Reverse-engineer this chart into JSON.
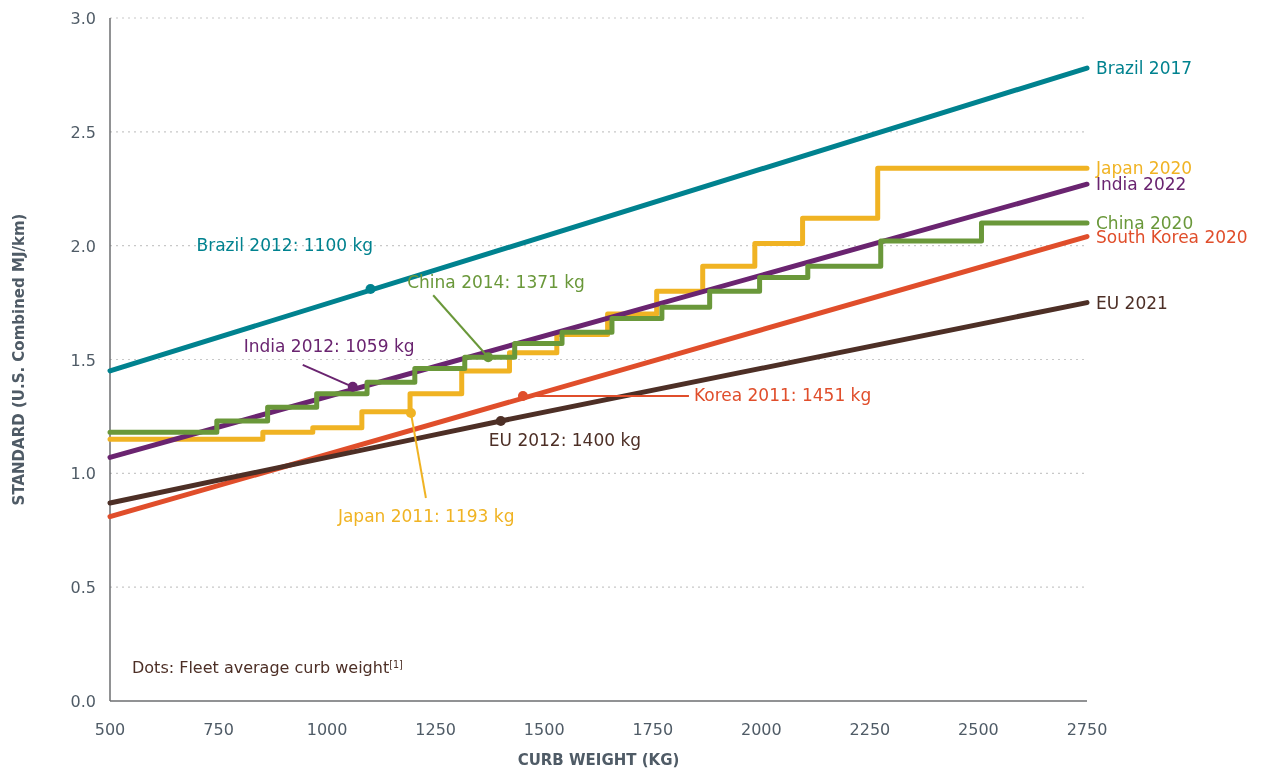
{
  "chart_data": {
    "type": "line",
    "xlabel": "CURB WEIGHT (KG)",
    "ylabel": "STANDARD (U.S. Combined MJ/km)",
    "xlim": [
      500,
      2750
    ],
    "xticks": [
      500,
      750,
      1000,
      1250,
      1500,
      1750,
      2000,
      2250,
      2500,
      2750
    ],
    "ylim": [
      0,
      3
    ],
    "yticks": [
      {
        "value": 0,
        "label": "0.0"
      },
      {
        "value": 0.5,
        "label": "0.5"
      },
      {
        "value": 1,
        "label": "1.0"
      },
      {
        "value": 1.5,
        "label": "1.5"
      },
      {
        "value": 2,
        "label": "2.0"
      },
      {
        "value": 2.5,
        "label": "2.5"
      },
      {
        "value": 3,
        "label": "3.0"
      }
    ],
    "grid": "y",
    "legend": false,
    "series": [
      {
        "name": "Brazil 2017",
        "color": "#00828f",
        "x": [
          500,
          2750
        ],
        "values": [
          1.45,
          2.78
        ]
      },
      {
        "name": "Japan 2020",
        "type": "step",
        "color": "#f0b323",
        "x": [
          500,
          852,
          967,
          1080,
          1191,
          1310,
          1420,
          1529,
          1646,
          1759,
          1865,
          1985,
          2095,
          2268,
          2750
        ],
        "values": [
          1.15,
          1.18,
          1.2,
          1.27,
          1.35,
          1.45,
          1.53,
          1.61,
          1.7,
          1.8,
          1.91,
          2.01,
          2.12,
          2.34,
          2.34
        ]
      },
      {
        "name": "India 2022",
        "color": "#6a2470",
        "x": [
          500,
          2750
        ],
        "values": [
          1.07,
          2.27
        ]
      },
      {
        "name": "China 2020",
        "type": "step",
        "color": "#6a983a",
        "x": [
          500,
          746,
          863,
          976,
          1092,
          1202,
          1317,
          1432,
          1541,
          1656,
          1771,
          1881,
          1996,
          2107,
          2275,
          2507,
          2750
        ],
        "values": [
          1.18,
          1.23,
          1.29,
          1.35,
          1.4,
          1.46,
          1.51,
          1.57,
          1.62,
          1.68,
          1.73,
          1.8,
          1.86,
          1.91,
          2.02,
          2.1,
          2.1
        ]
      },
      {
        "name": "South Korea 2020",
        "color": "#e04e2b",
        "x": [
          500,
          2750
        ],
        "values": [
          0.81,
          2.04
        ]
      },
      {
        "name": "EU 2021",
        "color": "#4d2f26",
        "x": [
          500,
          1250,
          1400,
          2750
        ],
        "values": [
          0.87,
          1.17,
          1.23,
          1.75
        ]
      },
      {
        "type": "scatter",
        "marker": "circle",
        "x": [
          1100,
          1059,
          1371,
          1193,
          1451,
          1400
        ],
        "values": [
          1.81,
          1.38,
          1.51,
          1.265,
          1.34,
          1.23
        ],
        "colors": [
          "#00828f",
          "#6a2470",
          "#6a983a",
          "#f0b323",
          "#e04e2b",
          "#4d2f26"
        ]
      }
    ],
    "annotations": [
      {
        "text": "Brazil 2012: 1100 kg",
        "x": 1100,
        "y": 1.81
      },
      {
        "text": "India 2012: 1059 kg",
        "x": 1059,
        "y": 1.38
      },
      {
        "text": "China 2014: 1371 kg",
        "x": 1371,
        "y": 1.51
      },
      {
        "text": "Japan 2011: 1193 kg",
        "x": 1193,
        "y": 1.265
      },
      {
        "text": "Korea 2011: 1451 kg",
        "x": 1451,
        "y": 1.34
      },
      {
        "text": "EU 2012: 1400 kg",
        "x": 1400,
        "y": 1.23
      },
      "Dots: Fleet average curb weight$^{[1]}$"
    ]
  }
}
